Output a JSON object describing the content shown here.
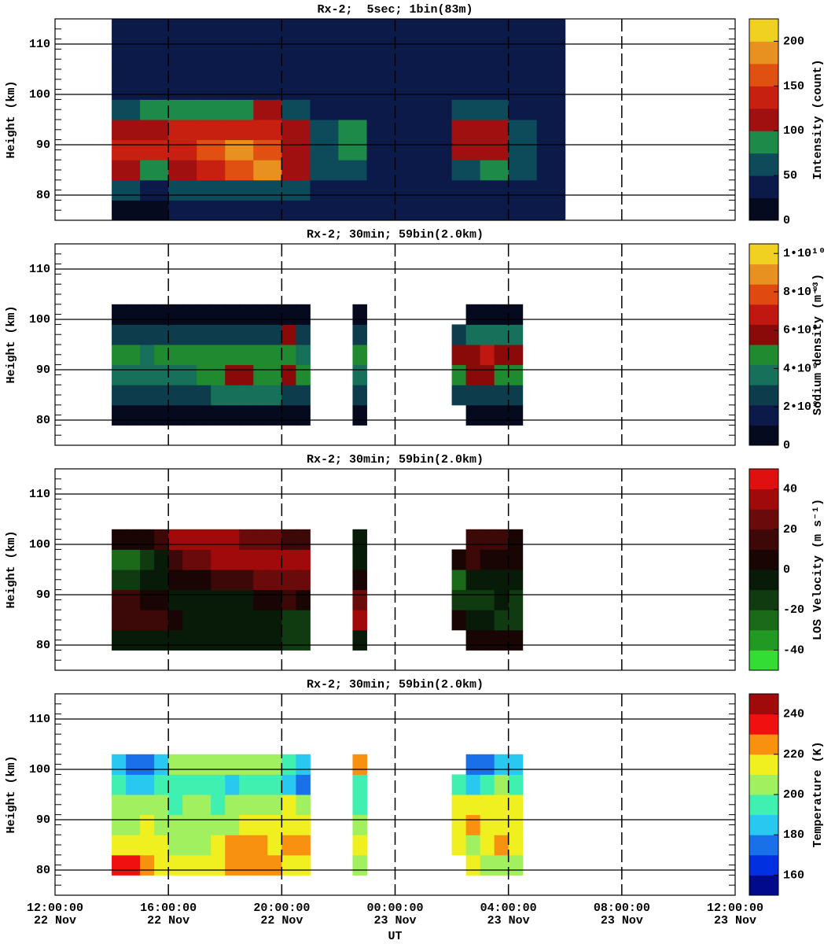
{
  "chart_data": [
    {
      "type": "heatmap",
      "title": "Rx-2;  5sec; 1bin(83m)",
      "ylabel": "Height (km)",
      "colorbar_label": "Intensity (count)",
      "xlim": [
        12,
        36
      ],
      "xticks": [
        12,
        16,
        20,
        24,
        28,
        32,
        36
      ],
      "ylim": [
        75,
        115
      ],
      "yticks": [
        80,
        90,
        100,
        110
      ],
      "grid": true,
      "clim": [
        0,
        225
      ],
      "cticks": [
        0,
        50,
        100,
        150,
        200
      ],
      "colors": [
        "#050a1e",
        "#0c1a4a",
        "#0d4a5a",
        "#1e8a4a",
        "#a01010",
        "#c82010",
        "#e05010",
        "#e89020",
        "#f0d020"
      ],
      "x": [
        14.5,
        15.5,
        16.5,
        17.5,
        18.5,
        19.5,
        20.5,
        21.5,
        22.5,
        23.5,
        24.5,
        25.5,
        26.5,
        27.5,
        28.5,
        29.5
      ],
      "y": [
        77,
        81,
        85,
        89,
        93,
        97,
        101,
        105,
        109,
        113
      ],
      "values": [
        [
          20,
          60,
          100,
          130,
          120,
          70,
          30,
          25,
          25,
          25
        ],
        [
          20,
          45,
          90,
          130,
          120,
          80,
          30,
          25,
          25,
          25
        ],
        [
          25,
          50,
          110,
          140,
          130,
          80,
          30,
          25,
          25,
          25
        ],
        [
          25,
          60,
          130,
          160,
          140,
          90,
          30,
          25,
          25,
          25
        ],
        [
          25,
          70,
          170,
          180,
          140,
          90,
          30,
          25,
          25,
          25
        ],
        [
          25,
          60,
          180,
          170,
          140,
          100,
          35,
          25,
          25,
          25
        ],
        [
          25,
          50,
          100,
          110,
          100,
          70,
          30,
          25,
          25,
          25
        ],
        [
          25,
          30,
          50,
          60,
          55,
          35,
          25,
          25,
          25,
          25
        ],
        [
          25,
          30,
          70,
          90,
          80,
          40,
          25,
          25,
          25,
          25
        ],
        [
          25,
          25,
          30,
          35,
          30,
          25,
          25,
          25,
          25,
          25
        ],
        [
          25,
          25,
          25,
          30,
          25,
          25,
          25,
          25,
          25,
          25
        ],
        [
          25,
          25,
          30,
          35,
          30,
          25,
          25,
          25,
          25,
          25
        ],
        [
          25,
          30,
          70,
          100,
          100,
          60,
          25,
          25,
          25,
          25
        ],
        [
          25,
          35,
          90,
          120,
          110,
          70,
          25,
          25,
          25,
          25
        ],
        [
          25,
          30,
          60,
          70,
          60,
          40,
          25,
          25,
          25,
          25
        ],
        [
          30,
          30,
          30,
          30,
          30,
          30,
          30,
          30,
          30,
          30
        ]
      ]
    },
    {
      "type": "heatmap",
      "title": "Rx-2; 30min; 59bin(2.0km)",
      "ylabel": "Height (km)",
      "colorbar_label": "Sodium density (m⁻³)",
      "xlim": [
        12,
        36
      ],
      "xticks": [
        12,
        16,
        20,
        24,
        28,
        32,
        36
      ],
      "ylim": [
        75,
        115
      ],
      "yticks": [
        80,
        90,
        100,
        110
      ],
      "grid": true,
      "clim": [
        0,
        10500000000.0
      ],
      "cticks": [
        0,
        {
          "value": 2000000000.0,
          "label": "2•10⁹"
        },
        {
          "value": 4000000000.0,
          "label": "4•10⁹"
        },
        {
          "value": 6000000000.0,
          "label": "6•10⁹"
        },
        {
          "value": 8000000000.0,
          "label": "8•10⁹"
        },
        {
          "value": 10000000000.0,
          "label": "1•10¹⁰"
        }
      ],
      "colors": [
        "#050a1e",
        "#0c1a4a",
        "#0d3c4c",
        "#17705a",
        "#1f8a30",
        "#8a0a0a",
        "#c01810",
        "#e04a10",
        "#e89020",
        "#f0d020"
      ],
      "x": [
        14.25,
        14.75,
        15.25,
        15.75,
        16.25,
        16.75,
        17.25,
        17.75,
        18.25,
        18.75,
        19.25,
        19.75,
        20.25,
        20.75,
        22.75,
        26.25,
        26.75,
        27.25,
        27.75,
        28.25
      ],
      "y": [
        81,
        85,
        89,
        93,
        97,
        101
      ],
      "values": [
        [
          1000000000.0,
          3000000000.0,
          3500000000.0,
          4500000000.0,
          3000000000.0,
          1000000000.0
        ],
        [
          1000000000.0,
          3000000000.0,
          3500000000.0,
          4500000000.0,
          3000000000.0,
          800000000.0
        ],
        [
          1000000000.0,
          3000000000.0,
          3500000000.0,
          4000000000.0,
          3000000000.0,
          800000000.0
        ],
        [
          1000000000.0,
          3000000000.0,
          4000000000.0,
          4500000000.0,
          3000000000.0,
          500000000.0
        ],
        [
          1000000000.0,
          2500000000.0,
          4000000000.0,
          4500000000.0,
          3000000000.0,
          500000000.0
        ],
        [
          1000000000.0,
          3000000000.0,
          4000000000.0,
          4500000000.0,
          3000000000.0,
          500000000.0
        ],
        [
          1000000000.0,
          3000000000.0,
          4500000000.0,
          4500000000.0,
          3000000000.0,
          500000000.0
        ],
        [
          1000000000.0,
          3500000000.0,
          4500000000.0,
          4500000000.0,
          3000000000.0,
          500000000.0
        ],
        [
          1000000000.0,
          3500000000.0,
          5500000000.0,
          4500000000.0,
          3000000000.0,
          500000000.0
        ],
        [
          1000000000.0,
          3500000000.0,
          6000000000.0,
          4500000000.0,
          3000000000.0,
          500000000.0
        ],
        [
          1000000000.0,
          3500000000.0,
          5000000000.0,
          4500000000.0,
          3000000000.0,
          500000000.0
        ],
        [
          1000000000.0,
          3500000000.0,
          4500000000.0,
          4500000000.0,
          3000000000.0,
          500000000.0
        ],
        [
          1000000000.0,
          3000000000.0,
          5500000000.0,
          4500000000.0,
          6000000000.0,
          1000000000.0
        ],
        [
          1000000000.0,
          3000000000.0,
          4500000000.0,
          4000000000.0,
          3000000000.0,
          1000000000.0
        ],
        [
          1000000000.0,
          3000000000.0,
          4000000000.0,
          4500000000.0,
          3000000000.0,
          1000000000.0
        ],
        [
          null,
          2500000000.0,
          4500000000.0,
          6000000000.0,
          3000000000.0,
          null
        ],
        [
          1000000000.0,
          3000000000.0,
          5500000000.0,
          6000000000.0,
          3500000000.0,
          1000000000.0
        ],
        [
          1000000000.0,
          3000000000.0,
          5500000000.0,
          6500000000.0,
          4000000000.0,
          1000000000.0
        ],
        [
          1000000000.0,
          3000000000.0,
          5000000000.0,
          6000000000.0,
          4000000000.0,
          1000000000.0
        ],
        [
          1000000000.0,
          3000000000.0,
          4500000000.0,
          6000000000.0,
          4000000000.0,
          1000000000.0
        ]
      ]
    },
    {
      "type": "heatmap",
      "title": "Rx-2; 30min; 59bin(2.0km)",
      "ylabel": "Height (km)",
      "colorbar_label": "LOS Velocity (m s⁻¹)",
      "xlim": [
        12,
        36
      ],
      "xticks": [
        12,
        16,
        20,
        24,
        28,
        32,
        36
      ],
      "ylim": [
        75,
        115
      ],
      "yticks": [
        80,
        90,
        100,
        110
      ],
      "grid": true,
      "clim": [
        -50,
        50
      ],
      "cticks": [
        -40,
        -20,
        0,
        20,
        40
      ],
      "colors": [
        "#33dd33",
        "#229922",
        "#1a6a1a",
        "#103a10",
        "#081a08",
        "#1a0505",
        "#3d0808",
        "#6a0a0a",
        "#a00a0a",
        "#e01010"
      ],
      "x": [
        14.25,
        14.75,
        15.25,
        15.75,
        16.25,
        16.75,
        17.25,
        17.75,
        18.25,
        18.75,
        19.25,
        19.75,
        20.25,
        20.75,
        22.75,
        26.25,
        26.75,
        27.25,
        27.75,
        28.25
      ],
      "y": [
        81,
        85,
        89,
        93,
        97,
        101
      ],
      "values": [
        [
          -10,
          10,
          15,
          -20,
          -25,
          0
        ],
        [
          -10,
          10,
          15,
          -20,
          -25,
          0
        ],
        [
          -10,
          15,
          5,
          -10,
          -15,
          5
        ],
        [
          -10,
          10,
          0,
          -10,
          -10,
          15
        ],
        [
          -10,
          0,
          -5,
          0,
          10,
          30
        ],
        [
          -10,
          -5,
          -10,
          5,
          20,
          35
        ],
        [
          -10,
          -10,
          -10,
          5,
          25,
          35
        ],
        [
          -10,
          -10,
          -10,
          10,
          30,
          35
        ],
        [
          -10,
          -10,
          -10,
          10,
          35,
          30
        ],
        [
          -10,
          -10,
          -10,
          15,
          35,
          25
        ],
        [
          -10,
          -10,
          0,
          20,
          35,
          20
        ],
        [
          -10,
          -10,
          5,
          20,
          30,
          20
        ],
        [
          -15,
          -15,
          10,
          25,
          35,
          15
        ],
        [
          -15,
          -15,
          5,
          20,
          30,
          15
        ],
        [
          -10,
          30,
          25,
          5,
          -5,
          -10
        ],
        [
          null,
          5,
          -20,
          -25,
          5,
          null
        ],
        [
          5,
          -10,
          -20,
          -10,
          10,
          10
        ],
        [
          5,
          -10,
          -15,
          -5,
          5,
          10
        ],
        [
          0,
          -15,
          -10,
          -10,
          0,
          10
        ],
        [
          0,
          -20,
          -15,
          -10,
          0,
          5
        ]
      ]
    },
    {
      "type": "heatmap",
      "title": "Rx-2; 30min; 59bin(2.0km)",
      "ylabel": "Height (km)",
      "colorbar_label": "Temperature (K)",
      "xlabel": "UT",
      "xlim": [
        12,
        36
      ],
      "xticks": [
        {
          "value": 12,
          "label": "12:00:00\n22 Nov"
        },
        {
          "value": 16,
          "label": "16:00:00\n22 Nov"
        },
        {
          "value": 20,
          "label": "20:00:00\n22 Nov"
        },
        {
          "value": 24,
          "label": "00:00:00\n23 Nov"
        },
        {
          "value": 28,
          "label": "04:00:00\n23 Nov"
        },
        {
          "value": 32,
          "label": "08:00:00\n23 Nov"
        },
        {
          "value": 36,
          "label": "12:00:00\n23 Nov"
        }
      ],
      "ylim": [
        75,
        115
      ],
      "yticks": [
        80,
        90,
        100,
        110
      ],
      "grid": true,
      "clim": [
        150,
        250
      ],
      "cticks": [
        160,
        180,
        200,
        220,
        240
      ],
      "colors": [
        "#000a8a",
        "#0030e0",
        "#1a70e8",
        "#28c8f0",
        "#40f0b0",
        "#a0f060",
        "#f0f020",
        "#f89010",
        "#f01010",
        "#a00a0a"
      ],
      "x": [
        14.25,
        14.75,
        15.25,
        15.75,
        16.25,
        16.75,
        17.25,
        17.75,
        18.25,
        18.75,
        19.25,
        19.75,
        20.25,
        20.75,
        22.75,
        26.25,
        26.75,
        27.25,
        27.75,
        28.25
      ],
      "y": [
        81,
        85,
        89,
        93,
        97,
        101
      ],
      "values": [
        [
          230,
          210,
          205,
          200,
          190,
          180
        ],
        [
          230,
          215,
          205,
          200,
          185,
          175
        ],
        [
          225,
          215,
          210,
          200,
          185,
          175
        ],
        [
          210,
          210,
          205,
          200,
          190,
          185
        ],
        [
          215,
          205,
          200,
          195,
          195,
          200
        ],
        [
          210,
          205,
          200,
          205,
          195,
          200
        ],
        [
          215,
          205,
          205,
          200,
          195,
          200
        ],
        [
          215,
          215,
          205,
          195,
          190,
          205
        ],
        [
          220,
          225,
          205,
          200,
          185,
          200
        ],
        [
          220,
          225,
          210,
          200,
          190,
          205
        ],
        [
          220,
          220,
          215,
          200,
          195,
          200
        ],
        [
          220,
          215,
          210,
          205,
          190,
          200
        ],
        [
          215,
          220,
          215,
          210,
          185,
          190
        ],
        [
          210,
          225,
          210,
          200,
          175,
          185
        ],
        [
          200,
          210,
          205,
          190,
          195,
          225
        ],
        [
          null,
          210,
          210,
          215,
          190,
          null
        ],
        [
          210,
          205,
          225,
          215,
          185,
          175
        ],
        [
          205,
          210,
          215,
          210,
          195,
          170
        ],
        [
          205,
          220,
          215,
          215,
          200,
          180
        ],
        [
          200,
          215,
          215,
          210,
          195,
          185
        ]
      ]
    }
  ]
}
